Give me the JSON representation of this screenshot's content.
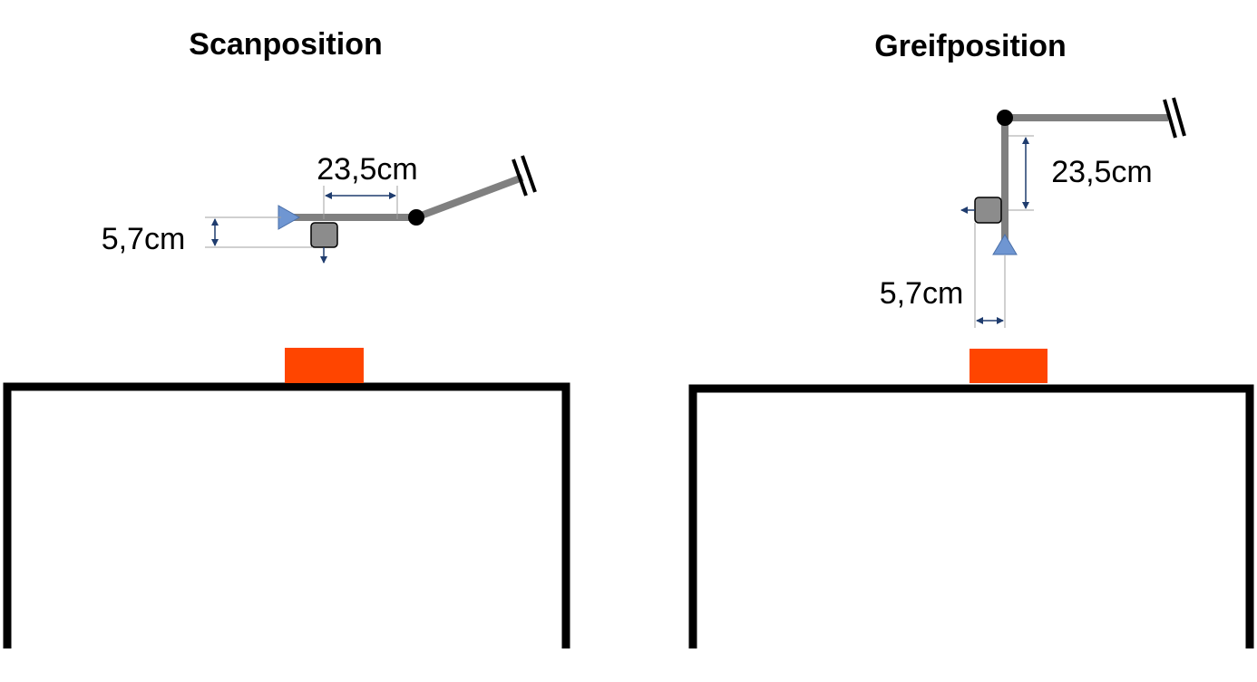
{
  "panels": [
    {
      "title": "Scanposition",
      "dimension_arm": "23,5cm",
      "dimension_offset": "5,7cm"
    },
    {
      "title": "Greifposition",
      "dimension_arm": "23,5cm",
      "dimension_offset": "5,7cm"
    }
  ],
  "colors": {
    "arm": "#808080",
    "joint": "#000000",
    "gripper": "#6F96D2",
    "camera": "#8C8C8C",
    "object": "#FF4500",
    "table": "#000000",
    "dimension_line": "#1F3C6E",
    "extension_line": "#A0A0A0"
  },
  "icons": [
    "joint-icon",
    "gripper-icon",
    "camera-icon",
    "break-mark-icon",
    "arrow-icon"
  ]
}
